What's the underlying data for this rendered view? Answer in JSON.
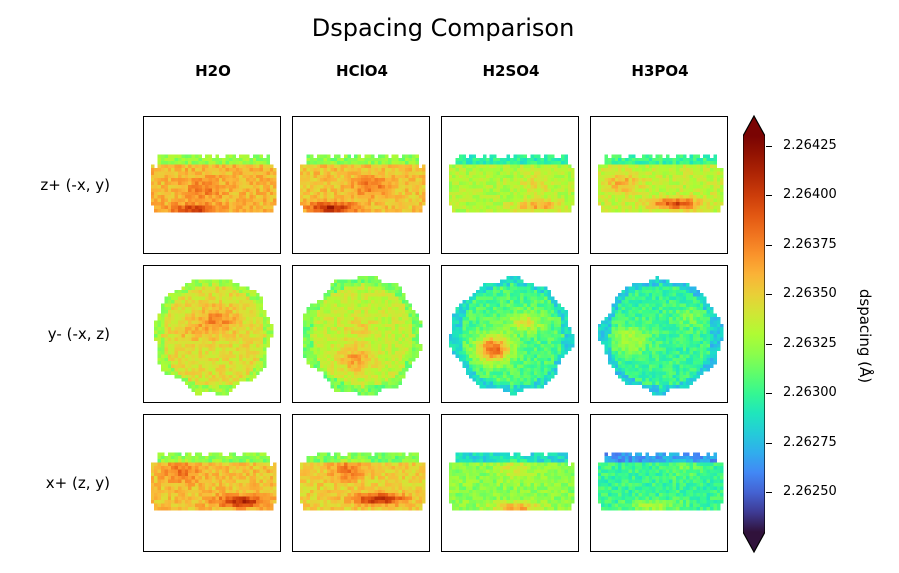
{
  "chart_data": {
    "type": "heatmap",
    "title": "Dspacing Comparison",
    "columns": [
      "H2O",
      "HClO4",
      "H2SO4",
      "H3PO4"
    ],
    "rows": [
      "z+ (-x, y)",
      "y- (-x, z)",
      "x+ (z, y)"
    ],
    "colorbar": {
      "label": "dspacing (Å)",
      "colormap": "turbo",
      "range": [
        2.2623,
        2.2643
      ],
      "extend": "both",
      "ticks": [
        "2.26425",
        "2.26400",
        "2.26375",
        "2.26350",
        "2.26325",
        "2.26300",
        "2.26275",
        "2.26250"
      ],
      "tick_values": [
        2.26425,
        2.264,
        2.26375,
        2.2635,
        2.26325,
        2.263,
        2.26275,
        2.2625
      ]
    },
    "panels": [
      {
        "row": 0,
        "col": 0,
        "shape": "slab",
        "mean": 2.26358,
        "hot": 2.26402
      },
      {
        "row": 0,
        "col": 1,
        "shape": "slab",
        "mean": 2.26355,
        "hot": 2.2641
      },
      {
        "row": 0,
        "col": 2,
        "shape": "slab",
        "mean": 2.2633,
        "hot": 2.26365
      },
      {
        "row": 0,
        "col": 3,
        "shape": "slab",
        "mean": 2.26335,
        "hot": 2.26395
      },
      {
        "row": 1,
        "col": 0,
        "shape": "blob",
        "mean": 2.26345,
        "hot": 2.26375
      },
      {
        "row": 1,
        "col": 1,
        "shape": "blob",
        "mean": 2.26335,
        "hot": 2.26365
      },
      {
        "row": 1,
        "col": 2,
        "shape": "blob",
        "mean": 2.26305,
        "hot": 2.26385
      },
      {
        "row": 1,
        "col": 3,
        "shape": "blob",
        "mean": 2.263,
        "hot": 2.2633
      },
      {
        "row": 2,
        "col": 0,
        "shape": "slab",
        "mean": 2.26355,
        "hot": 2.2641
      },
      {
        "row": 2,
        "col": 1,
        "shape": "slab",
        "mean": 2.2635,
        "hot": 2.26412
      },
      {
        "row": 2,
        "col": 2,
        "shape": "slab",
        "mean": 2.2632,
        "hot": 2.26365
      },
      {
        "row": 2,
        "col": 3,
        "shape": "slab",
        "mean": 2.263,
        "hot": 2.2633
      }
    ]
  }
}
